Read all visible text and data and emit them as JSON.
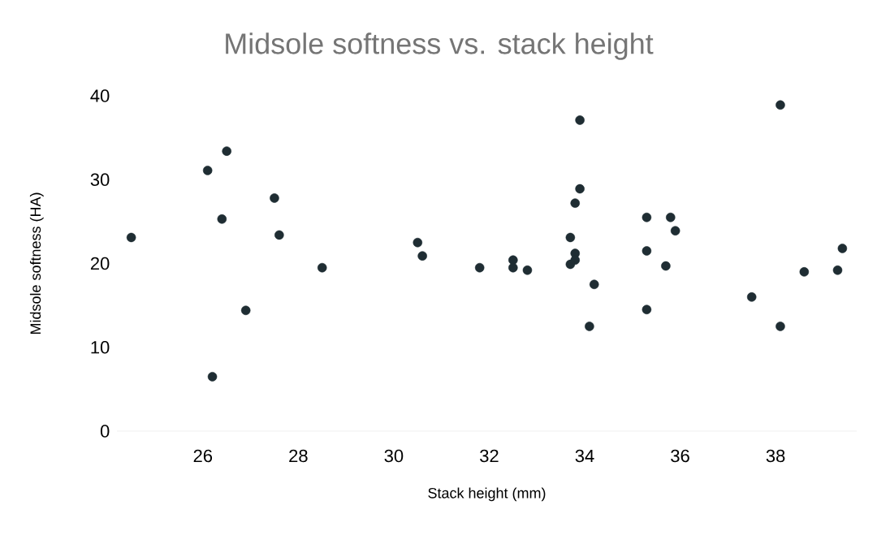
{
  "chart_data": {
    "type": "scatter",
    "title": "Midsole softness vs. stack height",
    "xlabel": "Stack height (mm)",
    "ylabel": "Midsole softness (HA)",
    "x": [
      24.5,
      26.1,
      26.5,
      26.4,
      26.2,
      26.9,
      27.5,
      27.6,
      28.5,
      30.5,
      30.6,
      31.8,
      32.5,
      32.5,
      32.8,
      33.9,
      33.9,
      33.8,
      33.7,
      33.8,
      33.8,
      33.7,
      34.2,
      34.1,
      35.3,
      35.3,
      35.3,
      35.7,
      35.8,
      35.9,
      37.5,
      38.1,
      38.1,
      38.6,
      39.3,
      39.4
    ],
    "values": [
      23.1,
      31.1,
      33.4,
      25.3,
      6.5,
      14.4,
      27.8,
      23.4,
      19.5,
      22.5,
      20.9,
      19.5,
      20.4,
      19.5,
      19.2,
      37.1,
      28.9,
      27.2,
      23.1,
      21.2,
      20.4,
      19.9,
      17.5,
      12.5,
      25.5,
      21.5,
      14.5,
      19.7,
      25.5,
      23.9,
      16.0,
      38.9,
      12.5,
      19.0,
      19.2,
      21.8
    ],
    "color": "#1f2d33",
    "marker": "circle",
    "grid": false,
    "xlim": [
      24.2,
      39.7
    ],
    "ylim": [
      0,
      40
    ],
    "xticks": [
      26,
      28,
      30,
      32,
      34,
      36,
      38
    ],
    "yticks": [
      0,
      10,
      20,
      30,
      40
    ]
  }
}
